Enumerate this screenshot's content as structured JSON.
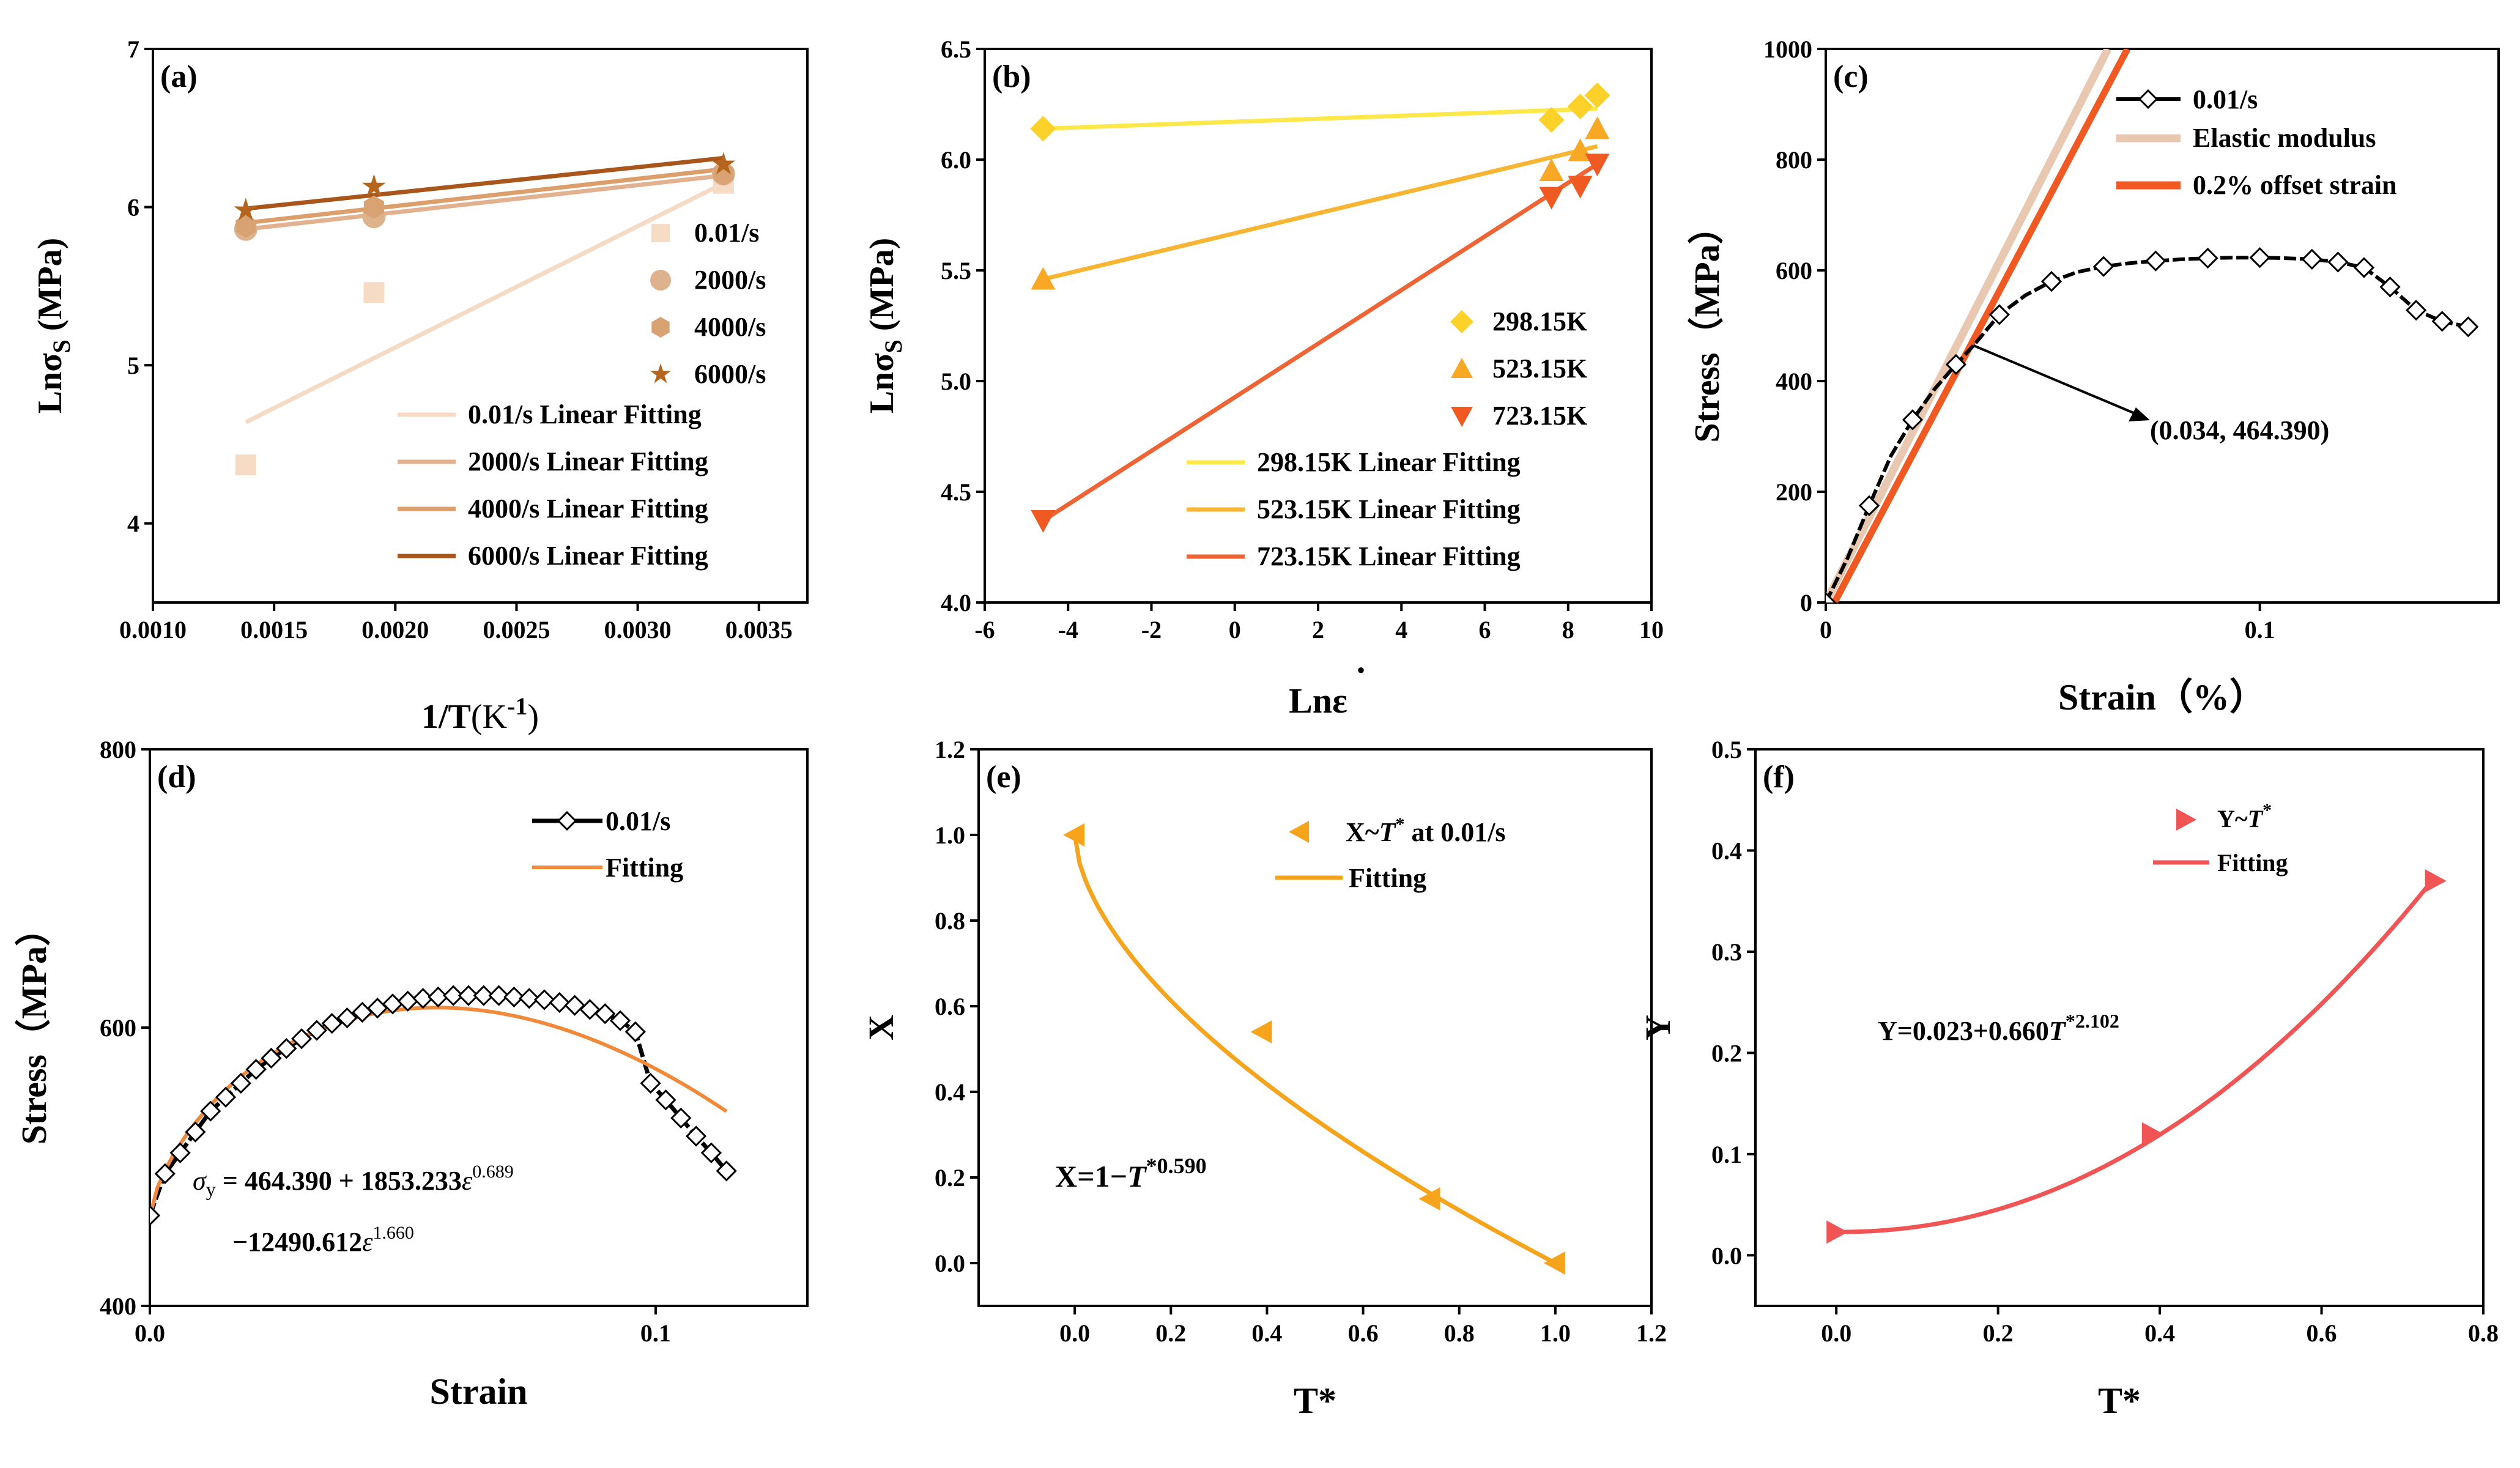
{
  "chart_data": [
    {
      "id": "a",
      "panel_label": "(a)",
      "type": "scatter",
      "xlabel": "1/T",
      "xlabel_unit": "(K",
      "xlabel_sup": "-1",
      "xlabel_close": ")",
      "ylabel": "Lnσ",
      "ylabel_sub": "S",
      "ylabel_unit": " (MPa)",
      "xlim": [
        0.001,
        0.0037
      ],
      "ylim": [
        3.5,
        7
      ],
      "xticks": [
        0.001,
        0.0015,
        0.002,
        0.0025,
        0.003,
        0.0035
      ],
      "xtick_labels": [
        "0.0010",
        "0.0015",
        "0.0020",
        "0.0025",
        "0.0030",
        "0.0035"
      ],
      "yticks": [
        4,
        5,
        6,
        7
      ],
      "ytick_labels": [
        "4",
        "5",
        "6",
        "7"
      ],
      "series": [
        {
          "name": "0.01/s",
          "marker": "square",
          "color": "#f6dcc4",
          "x": [
            0.001383,
            0.001912,
            0.003354
          ],
          "y": [
            4.37,
            5.46,
            6.15
          ]
        },
        {
          "name": "2000/s",
          "marker": "circle",
          "color": "#ddb28c",
          "x": [
            0.001383,
            0.001912,
            0.003354
          ],
          "y": [
            5.86,
            5.94,
            6.21
          ]
        },
        {
          "name": "4000/s",
          "marker": "hexagon",
          "color": "#d9a273",
          "x": [
            0.001383,
            0.001912,
            0.003354
          ],
          "y": [
            5.88,
            6.0,
            6.21
          ]
        },
        {
          "name": "6000/s",
          "marker": "star",
          "color": "#b5651d",
          "x": [
            0.001383,
            0.001912,
            0.003354
          ],
          "y": [
            5.98,
            6.13,
            6.27
          ]
        }
      ],
      "fits": [
        {
          "name": "0.01/s  Linear Fitting",
          "color": "#f8d9c3",
          "x": [
            0.001383,
            0.003354
          ],
          "y": [
            4.64,
            6.15
          ]
        },
        {
          "name": "2000/s Linear Fitting",
          "color": "#e2b190",
          "x": [
            0.001383,
            0.003354
          ],
          "y": [
            5.86,
            6.2
          ]
        },
        {
          "name": "4000/s Linear Fitting",
          "color": "#dc9e6a",
          "x": [
            0.001383,
            0.003354
          ],
          "y": [
            5.9,
            6.24
          ]
        },
        {
          "name": "6000/s Linear Fitting",
          "color": "#a8561b",
          "x": [
            0.001383,
            0.003354
          ],
          "y": [
            5.99,
            6.31
          ]
        }
      ]
    },
    {
      "id": "b",
      "panel_label": "(b)",
      "type": "scatter",
      "xlabel": "Lnε",
      "xlabel_dot": "·",
      "ylabel": "Lnσ",
      "ylabel_sub": "S",
      "ylabel_unit": " (MPa)",
      "xlim": [
        -6,
        10
      ],
      "ylim": [
        4.0,
        6.5
      ],
      "xticks": [
        -6,
        -4,
        -2,
        0,
        2,
        4,
        6,
        8,
        10
      ],
      "xtick_labels": [
        "-6",
        "-4",
        "-2",
        "0",
        "2",
        "4",
        "6",
        "8",
        "10"
      ],
      "yticks": [
        4.0,
        4.5,
        5.0,
        5.5,
        6.0,
        6.5
      ],
      "ytick_labels": [
        "4.0",
        "4.5",
        "5.0",
        "5.5",
        "6.0",
        "6.5"
      ],
      "series": [
        {
          "name": "298.15K",
          "marker": "diamond",
          "color": "#fcd12a",
          "x": [
            -4.6,
            7.6,
            8.29,
            8.7
          ],
          "y": [
            6.14,
            6.18,
            6.24,
            6.29
          ]
        },
        {
          "name": "523.15K",
          "marker": "triangle-up",
          "color": "#f8a825",
          "x": [
            -4.6,
            7.6,
            8.29,
            8.7
          ],
          "y": [
            5.46,
            5.95,
            6.04,
            6.14
          ]
        },
        {
          "name": "723.15K",
          "marker": "triangle-down",
          "color": "#f05a22",
          "x": [
            -4.6,
            7.6,
            8.29,
            8.7
          ],
          "y": [
            4.37,
            5.83,
            5.88,
            5.98
          ]
        }
      ],
      "fits": [
        {
          "name": "298.15K Linear Fitting",
          "color": "#fde84a",
          "x": [
            -4.6,
            8.7
          ],
          "y": [
            6.14,
            6.23
          ]
        },
        {
          "name": "523.15K Linear Fitting",
          "color": "#f8b534",
          "x": [
            -4.6,
            8.7
          ],
          "y": [
            5.46,
            6.06
          ]
        },
        {
          "name": "723.15K Linear Fitting",
          "color": "#ee6434",
          "x": [
            -4.6,
            8.7
          ],
          "y": [
            4.37,
            5.98
          ]
        }
      ]
    },
    {
      "id": "c",
      "panel_label": "(c)",
      "type": "line",
      "xlabel": "Strain（%）",
      "ylabel": "Stress（MPa）",
      "xlim": [
        0,
        0.155
      ],
      "ylim": [
        0,
        1000
      ],
      "xticks": [
        0,
        0.1
      ],
      "xtick_labels": [
        "0",
        "0.1"
      ],
      "yticks": [
        0,
        200,
        400,
        600,
        800,
        1000
      ],
      "ytick_labels": [
        "0",
        "200",
        "400",
        "600",
        "800",
        "1000"
      ],
      "series": [
        {
          "name": "0.01/s",
          "marker": "diamond-open",
          "color": "#000000",
          "x": [
            0,
            0.005,
            0.01,
            0.015,
            0.02,
            0.025,
            0.03,
            0.034,
            0.04,
            0.046,
            0.052,
            0.058,
            0.064,
            0.07,
            0.076,
            0.082,
            0.088,
            0.094,
            0.1,
            0.106,
            0.112,
            0.118,
            0.124,
            0.13,
            0.136,
            0.142,
            0.148
          ],
          "y": [
            0,
            80,
            175,
            265,
            330,
            385,
            430,
            464,
            520,
            555,
            580,
            597,
            607,
            613,
            617,
            620,
            622,
            623,
            623,
            622,
            620,
            615,
            605,
            570,
            528,
            508,
            498
          ]
        }
      ],
      "fits": [
        {
          "name": "Elastic modulus",
          "color": "#e8c8b0",
          "x": [
            0,
            0.065
          ],
          "y": [
            0,
            1000
          ]
        },
        {
          "name": "0.2% offset strain",
          "color": "#f05a22",
          "x": [
            0.002,
            0.0695
          ],
          "y": [
            0,
            1000
          ]
        }
      ],
      "annotation": {
        "text": "(0.034, 464.390)",
        "point": [
          0.034,
          464.39
        ],
        "label_at": [
          0.07,
          300
        ]
      }
    },
    {
      "id": "d",
      "panel_label": "(d)",
      "type": "line",
      "xlabel": "Strain",
      "ylabel": "Stress（MPa）",
      "xlim": [
        0,
        0.13
      ],
      "ylim": [
        400,
        800
      ],
      "xticks": [
        0,
        0.1
      ],
      "xtick_labels": [
        "0.0",
        "0.1"
      ],
      "yticks": [
        400,
        600,
        800
      ],
      "ytick_labels": [
        "400",
        "600",
        "800"
      ],
      "series": [
        {
          "name": "0.01/s",
          "marker": "diamond-open",
          "color": "#000000",
          "x": [
            0,
            0.003,
            0.006,
            0.009,
            0.012,
            0.015,
            0.018,
            0.021,
            0.024,
            0.027,
            0.03,
            0.033,
            0.036,
            0.039,
            0.042,
            0.045,
            0.048,
            0.051,
            0.054,
            0.057,
            0.06,
            0.063,
            0.066,
            0.069,
            0.072,
            0.075,
            0.078,
            0.081,
            0.084,
            0.087,
            0.09,
            0.093,
            0.096,
            0.099,
            0.102,
            0.105,
            0.108,
            0.111,
            0.114
          ],
          "y": [
            465,
            495,
            510,
            525,
            540,
            550,
            560,
            570,
            578,
            585,
            592,
            598,
            603,
            607,
            611,
            614,
            617,
            619,
            621,
            622,
            623,
            623,
            623,
            623,
            622,
            621,
            620,
            618,
            616,
            613,
            610,
            605,
            597,
            560,
            548,
            535,
            522,
            510,
            497
          ]
        }
      ],
      "fits": [
        {
          "name": "Fitting",
          "color": "#f08a3a"
        }
      ],
      "equation": {
        "model": "σy = 464.390 + 1853.233ε^0.689 − 12490.612ε^1.660",
        "sigma": "σ",
        "sub": "y",
        "line1": " = 464.390 + 1853.233",
        "line2": "−12490.612",
        "eps": "ε",
        "exp1": "0.689",
        "exp2": "1.660"
      }
    },
    {
      "id": "e",
      "panel_label": "(e)",
      "type": "scatter",
      "xlabel": "T*",
      "ylabel": "X",
      "xlim": [
        -0.2,
        1.2
      ],
      "ylim": [
        -0.1,
        1.2
      ],
      "xticks": [
        0,
        0.2,
        0.4,
        0.6,
        0.8,
        1.0,
        1.2
      ],
      "xtick_labels": [
        "0.0",
        "0.2",
        "0.4",
        "0.6",
        "0.8",
        "1.0",
        "1.2"
      ],
      "yticks": [
        0,
        0.2,
        0.4,
        0.6,
        0.8,
        1.0,
        1.2
      ],
      "ytick_labels": [
        "0.0",
        "0.2",
        "0.4",
        "0.6",
        "0.8",
        "1.0",
        "1.2"
      ],
      "series": [
        {
          "name": "X~T* at 0.01/s",
          "marker": "triangle-left",
          "color": "#f5a41c",
          "x": [
            0,
            0.39,
            0.74,
            1.0
          ],
          "y": [
            1.0,
            0.54,
            0.15,
            0.0
          ]
        }
      ],
      "fits": [
        {
          "name": "Fitting",
          "color": "#f5a41c",
          "model": "X=1-T*^0.590"
        }
      ],
      "legend_text": {
        "pre": "X~",
        "t": "T",
        "star": "*",
        "post": " at 0.01/s"
      },
      "equation": {
        "pre": "X=1−",
        "t": "T",
        "sup": "*0.590"
      }
    },
    {
      "id": "f",
      "panel_label": "(f)",
      "type": "scatter",
      "xlabel": "T*",
      "ylabel": "Y",
      "xlim": [
        -0.1,
        0.8
      ],
      "ylim": [
        -0.05,
        0.5
      ],
      "xticks": [
        0,
        0.2,
        0.4,
        0.6,
        0.8
      ],
      "xtick_labels": [
        "0.0",
        "0.2",
        "0.4",
        "0.6",
        "0.8"
      ],
      "yticks": [
        0,
        0.1,
        0.2,
        0.3,
        0.4,
        0.5
      ],
      "ytick_labels": [
        "0.0",
        "0.1",
        "0.2",
        "0.3",
        "0.4",
        "0.5"
      ],
      "series": [
        {
          "name": "Y~T*",
          "marker": "triangle-right",
          "color": "#f05454",
          "x": [
            0,
            0.39,
            0.74
          ],
          "y": [
            0.023,
            0.12,
            0.37
          ]
        }
      ],
      "fits": [
        {
          "name": "Fitting",
          "color": "#f05454",
          "model": "Y=0.023+0.660T*^2.102"
        }
      ],
      "legend_text": {
        "pre": "Y~",
        "t": "T",
        "star": "*",
        "post": ""
      },
      "equation": {
        "pre": "Y=0.023+0.660",
        "t": "T",
        "sup": "*2.102"
      }
    }
  ]
}
